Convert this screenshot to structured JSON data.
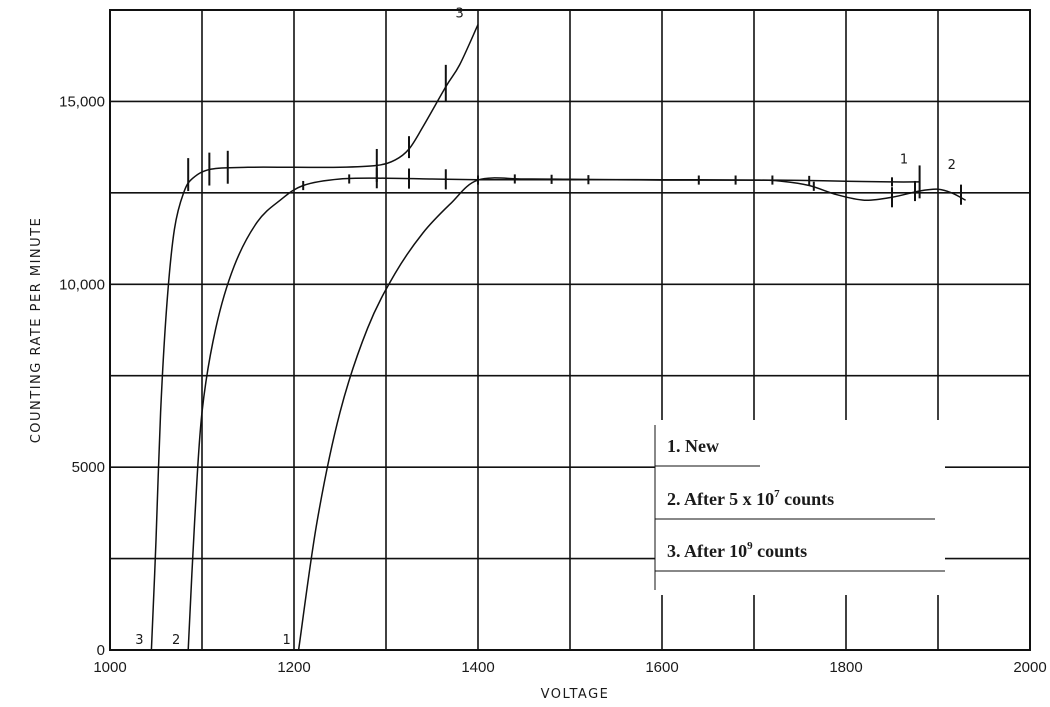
{
  "chart_data": {
    "type": "line",
    "title": "",
    "xlabel": "VOLTAGE",
    "ylabel": "COUNTING RATE PER MINUTE",
    "xlim": [
      1000,
      2000
    ],
    "ylim": [
      0,
      17500
    ],
    "x_ticks": [
      1000,
      1200,
      1400,
      1600,
      1800,
      2000
    ],
    "x_tick_labels": [
      "1000",
      "1200",
      "1400",
      "1600",
      "1800",
      "2000"
    ],
    "y_ticks": [
      0,
      5000,
      10000,
      15000
    ],
    "y_tick_labels": [
      "0",
      "5000",
      "10,000",
      "15,000"
    ],
    "y_grid": [
      2500,
      5000,
      7500,
      10000,
      12500,
      15000
    ],
    "x_grid": [
      1000,
      1100,
      1200,
      1300,
      1400,
      1500,
      1600,
      1700,
      1800,
      1900,
      2000
    ],
    "grid": true,
    "series": [
      {
        "name": "1. New",
        "curve_label": "1",
        "end_label": "1",
        "points": [
          [
            1205,
            0
          ],
          [
            1225,
            3500
          ],
          [
            1250,
            6500
          ],
          [
            1280,
            8800
          ],
          [
            1310,
            10300
          ],
          [
            1340,
            11400
          ],
          [
            1370,
            12200
          ],
          [
            1400,
            12850
          ],
          [
            1450,
            12880
          ],
          [
            1500,
            12870
          ],
          [
            1550,
            12860
          ],
          [
            1600,
            12850
          ],
          [
            1650,
            12850
          ],
          [
            1700,
            12850
          ],
          [
            1750,
            12840
          ],
          [
            1800,
            12820
          ],
          [
            1850,
            12800
          ],
          [
            1880,
            12800
          ]
        ],
        "error_bars": [
          [
            1400,
            12850,
            250
          ],
          [
            1440,
            12880,
            250
          ],
          [
            1480,
            12870,
            250
          ],
          [
            1520,
            12860,
            250
          ],
          [
            1640,
            12850,
            250
          ],
          [
            1680,
            12850,
            250
          ],
          [
            1720,
            12850,
            250
          ],
          [
            1760,
            12840,
            250
          ],
          [
            1850,
            12800,
            250
          ],
          [
            1880,
            12800,
            900
          ]
        ]
      },
      {
        "name": "2. After 5 x 10^7 counts",
        "curve_label": "2",
        "end_label": "2",
        "points": [
          [
            1085,
            0
          ],
          [
            1092,
            3500
          ],
          [
            1100,
            6500
          ],
          [
            1115,
            8800
          ],
          [
            1135,
            10500
          ],
          [
            1160,
            11700
          ],
          [
            1185,
            12300
          ],
          [
            1210,
            12700
          ],
          [
            1250,
            12880
          ],
          [
            1300,
            12900
          ],
          [
            1350,
            12880
          ],
          [
            1400,
            12860
          ],
          [
            1500,
            12860
          ],
          [
            1600,
            12860
          ],
          [
            1700,
            12850
          ],
          [
            1730,
            12820
          ],
          [
            1760,
            12700
          ],
          [
            1790,
            12450
          ],
          [
            1820,
            12300
          ],
          [
            1850,
            12380
          ],
          [
            1880,
            12550
          ],
          [
            1900,
            12600
          ],
          [
            1915,
            12500
          ],
          [
            1930,
            12300
          ]
        ],
        "error_bars": [
          [
            1210,
            12700,
            250
          ],
          [
            1260,
            12880,
            250
          ],
          [
            1290,
            12900,
            550
          ],
          [
            1325,
            12890,
            550
          ],
          [
            1365,
            12870,
            550
          ],
          [
            1765,
            12680,
            250
          ],
          [
            1850,
            12380,
            550
          ],
          [
            1875,
            12550,
            550
          ],
          [
            1925,
            12450,
            550
          ]
        ]
      },
      {
        "name": "3. After 10^9 counts",
        "curve_label": "3",
        "end_label": "3",
        "points": [
          [
            1045,
            0
          ],
          [
            1050,
            3000
          ],
          [
            1055,
            6500
          ],
          [
            1062,
            9500
          ],
          [
            1070,
            11500
          ],
          [
            1080,
            12500
          ],
          [
            1090,
            12900
          ],
          [
            1110,
            13150
          ],
          [
            1150,
            13200
          ],
          [
            1200,
            13200
          ],
          [
            1250,
            13200
          ],
          [
            1290,
            13250
          ],
          [
            1310,
            13400
          ],
          [
            1325,
            13700
          ],
          [
            1340,
            14300
          ],
          [
            1365,
            15400
          ],
          [
            1380,
            16000
          ],
          [
            1400,
            17100
          ]
        ],
        "error_bars": [
          [
            1085,
            13000,
            900
          ],
          [
            1108,
            13150,
            900
          ],
          [
            1128,
            13200,
            900
          ],
          [
            1290,
            13250,
            900
          ],
          [
            1325,
            13750,
            600
          ],
          [
            1365,
            15500,
            1000
          ]
        ]
      }
    ],
    "legend": {
      "placement": "bottom-right",
      "entries": [
        {
          "text": "1. New",
          "sup": "",
          "suffix": ""
        },
        {
          "text": "2. After 5 x 10",
          "sup": "7",
          "suffix": " counts"
        },
        {
          "text": "3. After 10",
          "sup": "9",
          "suffix": " counts"
        }
      ]
    }
  }
}
